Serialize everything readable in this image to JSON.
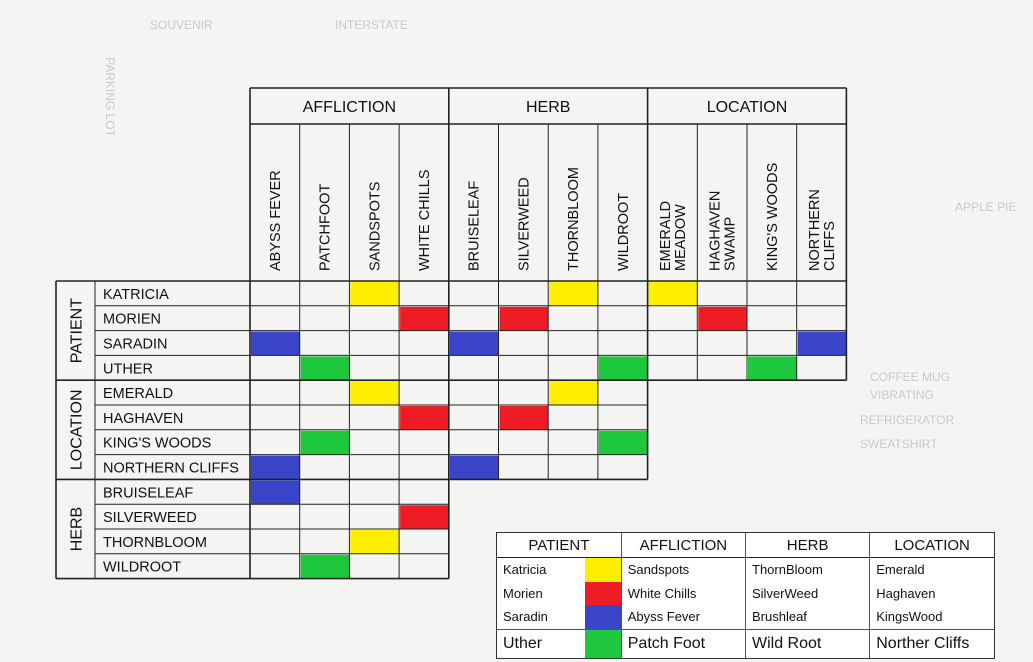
{
  "background_text": [
    "SOUVENIR",
    "INTERSTATE",
    "PARKING LOT",
    "APPLE PIE",
    "COFFEE MUG",
    "REFRIGERATOR",
    "SWEATSHIRT",
    "VIBRATING"
  ],
  "groups": {
    "affliction": "AFFLICTION",
    "herb": "HERB",
    "location": "LOCATION",
    "patient": "PATIENT"
  },
  "columns": {
    "affliction": [
      "ABYSS FEVER",
      "PATCHFOOT",
      "SANDSPOTS",
      "WHITE CHILLS"
    ],
    "herb": [
      "BRUISELEAF",
      "SILVERWEED",
      "THORNBLOOM",
      "WILDROOT"
    ],
    "location": [
      [
        "EMERALD",
        "MEADOW"
      ],
      [
        "HAGHAVEN",
        "SWAMP"
      ],
      [
        "KING'S WOODS"
      ],
      [
        "NORTHERN",
        "CLIFFS"
      ]
    ]
  },
  "rows": {
    "patient": [
      "KATRICIA",
      "MORIEN",
      "SARADIN",
      "UTHER"
    ],
    "location": [
      "EMERALD",
      "HAGHAVEN",
      "KING'S WOODS",
      "NORTHERN CLIFFS"
    ],
    "herb": [
      "BRUISELEAF",
      "SILVERWEED",
      "THORNBLOOM",
      "WILDROOT"
    ]
  },
  "colors": {
    "yellow": "#ffee00",
    "red": "#ee1c24",
    "blue": "#3a44c8",
    "green": "#1ec83c"
  },
  "marks": [
    {
      "row": 0,
      "col": 2,
      "color": "yellow"
    },
    {
      "row": 0,
      "col": 6,
      "color": "yellow"
    },
    {
      "row": 0,
      "col": 8,
      "color": "yellow"
    },
    {
      "row": 1,
      "col": 3,
      "color": "red"
    },
    {
      "row": 1,
      "col": 5,
      "color": "red"
    },
    {
      "row": 1,
      "col": 9,
      "color": "red"
    },
    {
      "row": 2,
      "col": 0,
      "color": "blue"
    },
    {
      "row": 2,
      "col": 4,
      "color": "blue"
    },
    {
      "row": 2,
      "col": 11,
      "color": "blue"
    },
    {
      "row": 3,
      "col": 1,
      "color": "green"
    },
    {
      "row": 3,
      "col": 7,
      "color": "green"
    },
    {
      "row": 3,
      "col": 10,
      "color": "green"
    },
    {
      "row": 4,
      "col": 2,
      "color": "yellow"
    },
    {
      "row": 4,
      "col": 6,
      "color": "yellow"
    },
    {
      "row": 5,
      "col": 3,
      "color": "red"
    },
    {
      "row": 5,
      "col": 5,
      "color": "red"
    },
    {
      "row": 6,
      "col": 1,
      "color": "green"
    },
    {
      "row": 6,
      "col": 7,
      "color": "green"
    },
    {
      "row": 7,
      "col": 0,
      "color": "blue"
    },
    {
      "row": 7,
      "col": 4,
      "color": "blue"
    },
    {
      "row": 8,
      "col": 0,
      "color": "blue"
    },
    {
      "row": 9,
      "col": 3,
      "color": "red"
    },
    {
      "row": 10,
      "col": 2,
      "color": "yellow"
    },
    {
      "row": 11,
      "col": 1,
      "color": "green"
    }
  ],
  "legend": {
    "headers": [
      "PATIENT",
      "AFFLICTION",
      "HERB",
      "LOCATION"
    ],
    "rows": [
      {
        "cells": [
          "Katricia",
          "Sandspots",
          "ThornBloom",
          "Emerald"
        ],
        "color": "yellow"
      },
      {
        "cells": [
          "Morien",
          "White Chills",
          "SilverWeed",
          "Haghaven"
        ],
        "color": "red"
      },
      {
        "cells": [
          "Saradin",
          "Abyss Fever",
          "Brushleaf",
          "KingsWood"
        ],
        "color": "blue"
      },
      {
        "cells": [
          "Uther",
          "Patch Foot",
          "Wild Root",
          "Norther Cliffs"
        ],
        "color": "green"
      }
    ]
  }
}
